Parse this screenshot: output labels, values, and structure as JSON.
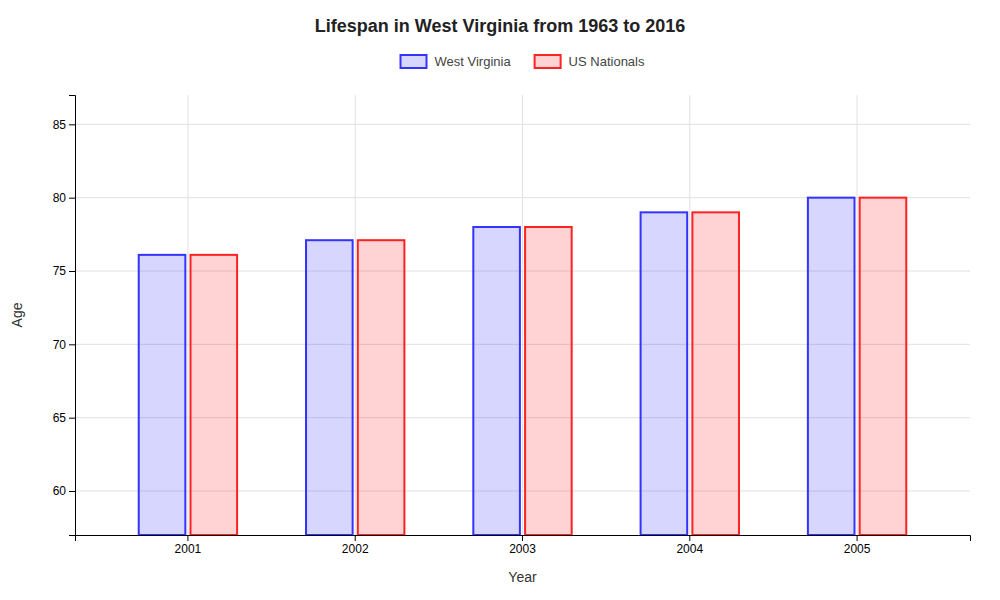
{
  "chart_data": {
    "type": "bar",
    "title": "Lifespan in West Virginia from 1963 to 2016",
    "xlabel": "Year",
    "ylabel": "Age",
    "categories": [
      "2001",
      "2002",
      "2003",
      "2004",
      "2005"
    ],
    "series": [
      {
        "name": "West Virginia",
        "color": "#3333ff",
        "values": [
          76.1,
          77.1,
          78.0,
          79.0,
          80.0
        ]
      },
      {
        "name": "US Nationals",
        "color": "#ff2222",
        "values": [
          76.1,
          77.1,
          78.0,
          79.0,
          80.0
        ]
      }
    ],
    "ylim": [
      57,
      87
    ],
    "yticks": [
      60,
      65,
      70,
      75,
      80,
      85
    ],
    "grid": true,
    "legend": "upper center"
  }
}
